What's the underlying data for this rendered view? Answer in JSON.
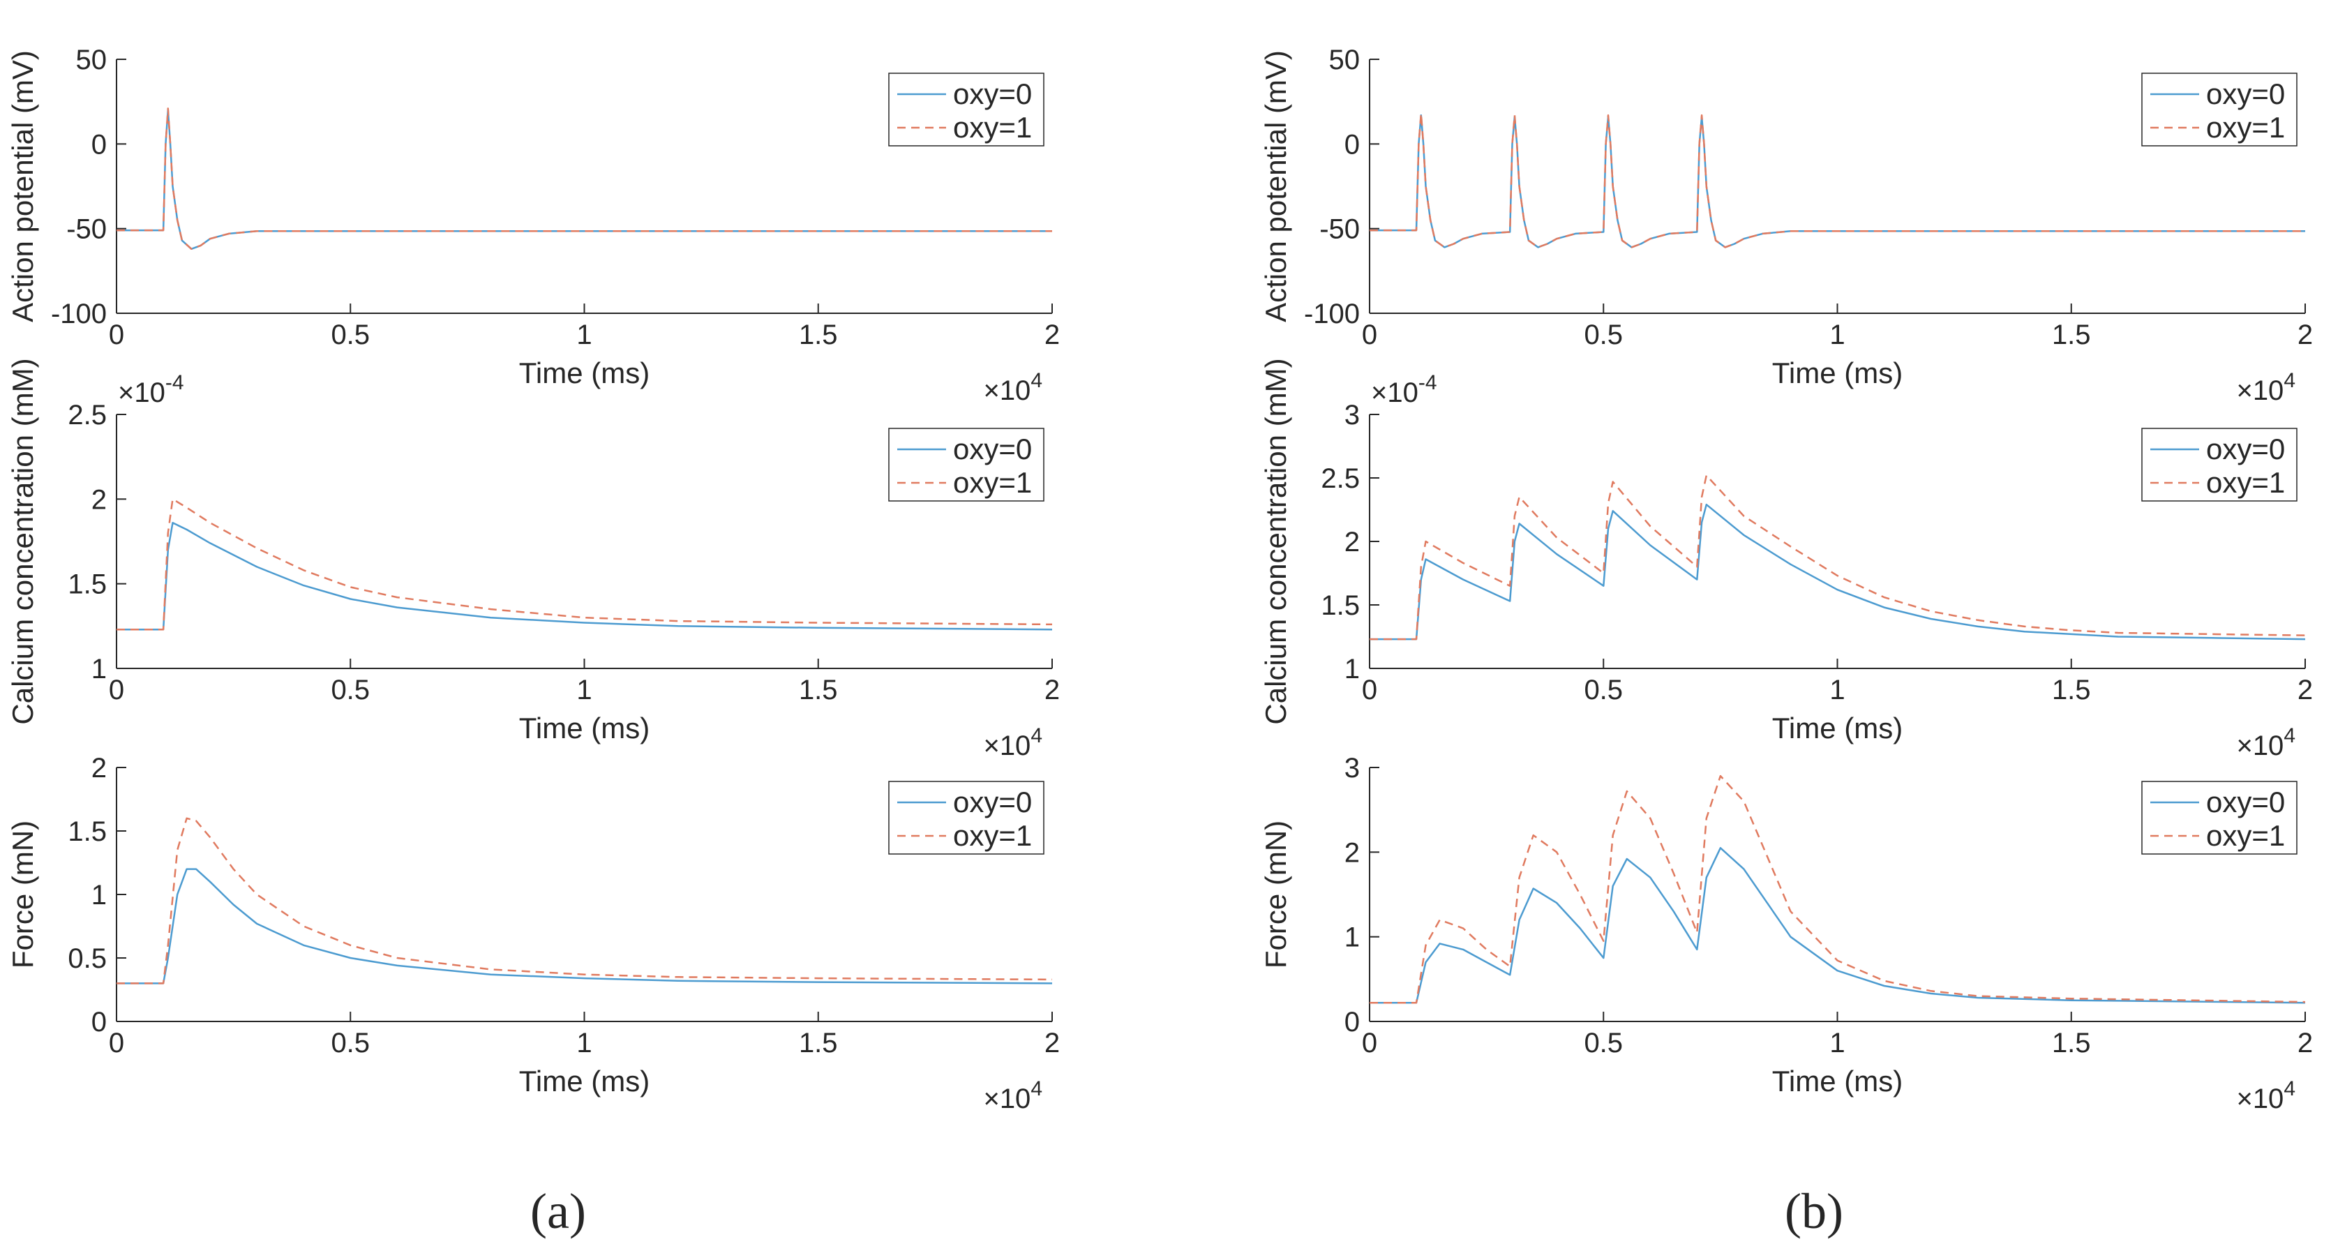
{
  "colors": {
    "oxy0": "#4c9bd0",
    "oxy1": "#e07a5f",
    "axis": "#262626"
  },
  "panel_labels": [
    "(a)",
    "(b)"
  ],
  "chart_data": [
    {
      "id": "a-ap",
      "type": "line",
      "panel": "a",
      "xlabel": "Time (ms)",
      "ylabel": "Action potential (mV)",
      "xlim": [
        0,
        20000
      ],
      "ylim": [
        -100,
        50
      ],
      "xticks": [
        0,
        5000,
        10000,
        15000,
        20000
      ],
      "xtick_labels": [
        "0",
        "0.5",
        "1",
        "1.5",
        "2"
      ],
      "yticks": [
        -100,
        -50,
        0,
        50
      ],
      "ytick_labels": [
        "-100",
        "-50",
        "0",
        "50"
      ],
      "x_multiplier": "×10",
      "x_multiplier_exp": "4",
      "y_multiplier": "",
      "y_multiplier_exp": "",
      "legend": [
        "oxy=0",
        "oxy=1"
      ],
      "legend_position": "top-right",
      "series": [
        {
          "name": "oxy=0",
          "x": [
            0,
            1000,
            1050,
            1100,
            1150,
            1200,
            1300,
            1400,
            1600,
            1800,
            2000,
            2400,
            3000,
            20000
          ],
          "y": [
            -51,
            -51,
            0,
            20,
            0,
            -25,
            -45,
            -57,
            -62,
            -60,
            -56,
            -53,
            -51.5,
            -51.5
          ]
        },
        {
          "name": "oxy=1",
          "x": [
            0,
            1000,
            1050,
            1100,
            1150,
            1200,
            1300,
            1400,
            1600,
            1800,
            2000,
            2400,
            3000,
            20000
          ],
          "y": [
            -51,
            -51,
            0,
            21,
            0,
            -25,
            -45,
            -57,
            -62,
            -60,
            -56,
            -53,
            -51.5,
            -51.5
          ]
        }
      ]
    },
    {
      "id": "a-ca",
      "type": "line",
      "panel": "a",
      "xlabel": "Time (ms)",
      "ylabel": "Calcium concentration (mM)",
      "xlim": [
        0,
        20000
      ],
      "ylim": [
        1,
        2.5
      ],
      "xticks": [
        0,
        5000,
        10000,
        15000,
        20000
      ],
      "xtick_labels": [
        "0",
        "0.5",
        "1",
        "1.5",
        "2"
      ],
      "yticks": [
        1,
        1.5,
        2,
        2.5
      ],
      "ytick_labels": [
        "1",
        "1.5",
        "2",
        "2.5"
      ],
      "x_multiplier": "×10",
      "x_multiplier_exp": "4",
      "y_multiplier": "×10",
      "y_multiplier_exp": "-4",
      "legend": [
        "oxy=0",
        "oxy=1"
      ],
      "legend_position": "top-right",
      "series": [
        {
          "name": "oxy=0",
          "x": [
            0,
            1000,
            1100,
            1200,
            1500,
            2000,
            3000,
            4000,
            5000,
            6000,
            8000,
            10000,
            12000,
            15000,
            20000
          ],
          "y": [
            1.23,
            1.23,
            1.7,
            1.86,
            1.82,
            1.74,
            1.6,
            1.49,
            1.41,
            1.36,
            1.3,
            1.27,
            1.25,
            1.24,
            1.23
          ]
        },
        {
          "name": "oxy=1",
          "x": [
            0,
            1000,
            1100,
            1200,
            1500,
            2000,
            3000,
            4000,
            5000,
            6000,
            8000,
            10000,
            12000,
            15000,
            20000
          ],
          "y": [
            1.23,
            1.23,
            1.8,
            2.0,
            1.95,
            1.86,
            1.71,
            1.58,
            1.48,
            1.42,
            1.35,
            1.3,
            1.28,
            1.27,
            1.26
          ]
        }
      ]
    },
    {
      "id": "a-force",
      "type": "line",
      "panel": "a",
      "xlabel": "Time (ms)",
      "ylabel": "Force (mN)",
      "xlim": [
        0,
        20000
      ],
      "ylim": [
        0,
        2
      ],
      "xticks": [
        0,
        5000,
        10000,
        15000,
        20000
      ],
      "xtick_labels": [
        "0",
        "0.5",
        "1",
        "1.5",
        "2"
      ],
      "yticks": [
        0,
        0.5,
        1,
        1.5,
        2
      ],
      "ytick_labels": [
        "0",
        "0.5",
        "1",
        "1.5",
        "2"
      ],
      "x_multiplier": "×10",
      "x_multiplier_exp": "4",
      "y_multiplier": "",
      "y_multiplier_exp": "",
      "legend": [
        "oxy=0",
        "oxy=1"
      ],
      "legend_position": "top-right",
      "series": [
        {
          "name": "oxy=0",
          "x": [
            0,
            1000,
            1100,
            1300,
            1500,
            1700,
            2000,
            2500,
            3000,
            4000,
            5000,
            6000,
            8000,
            10000,
            12000,
            15000,
            20000
          ],
          "y": [
            0.3,
            0.3,
            0.5,
            1.0,
            1.2,
            1.2,
            1.1,
            0.92,
            0.77,
            0.6,
            0.5,
            0.44,
            0.37,
            0.34,
            0.32,
            0.31,
            0.3
          ]
        },
        {
          "name": "oxy=1",
          "x": [
            0,
            1000,
            1100,
            1300,
            1500,
            1700,
            2000,
            2500,
            3000,
            4000,
            5000,
            6000,
            8000,
            10000,
            12000,
            15000,
            20000
          ],
          "y": [
            0.3,
            0.3,
            0.6,
            1.35,
            1.6,
            1.58,
            1.45,
            1.2,
            1.0,
            0.75,
            0.6,
            0.5,
            0.41,
            0.37,
            0.35,
            0.34,
            0.33
          ]
        }
      ]
    },
    {
      "id": "b-ap",
      "type": "line",
      "panel": "b",
      "xlabel": "Time (ms)",
      "ylabel": "Action potential (mV)",
      "xlim": [
        0,
        20000
      ],
      "ylim": [
        -100,
        50
      ],
      "xticks": [
        0,
        5000,
        10000,
        15000,
        20000
      ],
      "xtick_labels": [
        "0",
        "0.5",
        "1",
        "1.5",
        "2"
      ],
      "yticks": [
        -100,
        -50,
        0,
        50
      ],
      "ytick_labels": [
        "-100",
        "-50",
        "0",
        "50"
      ],
      "x_multiplier": "×10",
      "x_multiplier_exp": "4",
      "y_multiplier": "",
      "y_multiplier_exp": "",
      "legend": [
        "oxy=0",
        "oxy=1"
      ],
      "legend_position": "top-right",
      "series": [
        {
          "name": "oxy=0",
          "x": [
            0,
            1000,
            1050,
            1100,
            1150,
            1200,
            1300,
            1400,
            1600,
            1800,
            2000,
            2400,
            3000,
            3050,
            3100,
            3150,
            3200,
            3300,
            3400,
            3600,
            3800,
            4000,
            4400,
            5000,
            5050,
            5100,
            5150,
            5200,
            5300,
            5400,
            5600,
            5800,
            6000,
            6400,
            7000,
            7050,
            7100,
            7150,
            7200,
            7300,
            7400,
            7600,
            7800,
            8000,
            8400,
            9000,
            20000
          ],
          "y": [
            -51,
            -51,
            0,
            17,
            0,
            -25,
            -45,
            -57,
            -61,
            -59,
            -56,
            -53,
            -52,
            0,
            16,
            0,
            -25,
            -45,
            -57,
            -61,
            -59,
            -56,
            -53,
            -52,
            0,
            16,
            0,
            -25,
            -45,
            -57,
            -61,
            -59,
            -56,
            -53,
            -52,
            0,
            16,
            0,
            -25,
            -45,
            -57,
            -61,
            -59,
            -56,
            -53,
            -51.5,
            -51.5
          ]
        },
        {
          "name": "oxy=1",
          "x": [
            0,
            1000,
            1050,
            1100,
            1150,
            1200,
            1300,
            1400,
            1600,
            1800,
            2000,
            2400,
            3000,
            3050,
            3100,
            3150,
            3200,
            3300,
            3400,
            3600,
            3800,
            4000,
            4400,
            5000,
            5050,
            5100,
            5150,
            5200,
            5300,
            5400,
            5600,
            5800,
            6000,
            6400,
            7000,
            7050,
            7100,
            7150,
            7200,
            7300,
            7400,
            7600,
            7800,
            8000,
            8400,
            9000,
            20000
          ],
          "y": [
            -51,
            -51,
            0,
            18,
            0,
            -25,
            -45,
            -57,
            -61,
            -59,
            -56,
            -53,
            -52,
            0,
            17,
            0,
            -25,
            -45,
            -57,
            -61,
            -59,
            -56,
            -53,
            -52,
            0,
            17,
            0,
            -25,
            -45,
            -57,
            -61,
            -59,
            -56,
            -53,
            -52,
            0,
            17,
            0,
            -25,
            -45,
            -57,
            -61,
            -59,
            -56,
            -53,
            -51.5,
            -51.5
          ]
        }
      ]
    },
    {
      "id": "b-ca",
      "type": "line",
      "panel": "b",
      "xlabel": "Time (ms)",
      "ylabel": "Calcium concentration (mM)",
      "xlim": [
        0,
        20000
      ],
      "ylim": [
        1,
        3
      ],
      "xticks": [
        0,
        5000,
        10000,
        15000,
        20000
      ],
      "xtick_labels": [
        "0",
        "0.5",
        "1",
        "1.5",
        "2"
      ],
      "yticks": [
        1,
        1.5,
        2,
        2.5,
        3
      ],
      "ytick_labels": [
        "1",
        "1.5",
        "2",
        "2.5",
        "3"
      ],
      "x_multiplier": "×10",
      "x_multiplier_exp": "4",
      "y_multiplier": "×10",
      "y_multiplier_exp": "-4",
      "legend": [
        "oxy=0",
        "oxy=1"
      ],
      "legend_position": "top-right",
      "series": [
        {
          "name": "oxy=0",
          "x": [
            0,
            1000,
            1100,
            1200,
            2000,
            3000,
            3100,
            3200,
            4000,
            5000,
            5100,
            5200,
            6000,
            7000,
            7100,
            7200,
            8000,
            9000,
            10000,
            11000,
            12000,
            13000,
            14000,
            15000,
            16000,
            18000,
            20000
          ],
          "y": [
            1.23,
            1.23,
            1.7,
            1.86,
            1.7,
            1.53,
            2.0,
            2.14,
            1.9,
            1.65,
            2.1,
            2.24,
            1.97,
            1.7,
            2.15,
            2.29,
            2.05,
            1.82,
            1.62,
            1.48,
            1.39,
            1.33,
            1.29,
            1.27,
            1.25,
            1.24,
            1.23
          ]
        },
        {
          "name": "oxy=1",
          "x": [
            0,
            1000,
            1100,
            1200,
            2000,
            3000,
            3100,
            3200,
            4000,
            5000,
            5100,
            5200,
            6000,
            7000,
            7100,
            7200,
            8000,
            9000,
            10000,
            11000,
            12000,
            13000,
            14000,
            15000,
            16000,
            18000,
            20000
          ],
          "y": [
            1.23,
            1.23,
            1.8,
            2.0,
            1.83,
            1.65,
            2.2,
            2.35,
            2.03,
            1.75,
            2.3,
            2.47,
            2.12,
            1.8,
            2.35,
            2.52,
            2.2,
            1.96,
            1.73,
            1.56,
            1.45,
            1.38,
            1.33,
            1.3,
            1.28,
            1.27,
            1.26
          ]
        }
      ]
    },
    {
      "id": "b-force",
      "type": "line",
      "panel": "b",
      "xlabel": "Time (ms)",
      "ylabel": "Force (mN)",
      "xlim": [
        0,
        20000
      ],
      "ylim": [
        0,
        3
      ],
      "xticks": [
        0,
        5000,
        10000,
        15000,
        20000
      ],
      "xtick_labels": [
        "0",
        "0.5",
        "1",
        "1.5",
        "2"
      ],
      "yticks": [
        0,
        1,
        2,
        3
      ],
      "ytick_labels": [
        "0",
        "1",
        "2",
        "3"
      ],
      "x_multiplier": "×10",
      "x_multiplier_exp": "4",
      "y_multiplier": "",
      "y_multiplier_exp": "",
      "legend": [
        "oxy=0",
        "oxy=1"
      ],
      "legend_position": "top-right",
      "series": [
        {
          "name": "oxy=0",
          "x": [
            0,
            1000,
            1200,
            1500,
            2000,
            2500,
            3000,
            3200,
            3500,
            4000,
            4500,
            5000,
            5200,
            5500,
            6000,
            6500,
            7000,
            7200,
            7500,
            8000,
            8500,
            9000,
            10000,
            11000,
            12000,
            13000,
            15000,
            20000
          ],
          "y": [
            0.22,
            0.22,
            0.7,
            0.92,
            0.85,
            0.7,
            0.55,
            1.2,
            1.57,
            1.4,
            1.1,
            0.75,
            1.6,
            1.92,
            1.7,
            1.3,
            0.85,
            1.7,
            2.05,
            1.8,
            1.4,
            1.0,
            0.6,
            0.42,
            0.33,
            0.28,
            0.25,
            0.22
          ]
        },
        {
          "name": "oxy=1",
          "x": [
            0,
            1000,
            1200,
            1500,
            2000,
            2500,
            3000,
            3200,
            3500,
            4000,
            4500,
            5000,
            5200,
            5500,
            6000,
            6500,
            7000,
            7200,
            7500,
            8000,
            8500,
            9000,
            10000,
            11000,
            12000,
            13000,
            15000,
            20000
          ],
          "y": [
            0.22,
            0.22,
            0.9,
            1.2,
            1.1,
            0.85,
            0.65,
            1.7,
            2.2,
            2.0,
            1.5,
            0.95,
            2.2,
            2.72,
            2.4,
            1.75,
            1.05,
            2.4,
            2.9,
            2.6,
            1.95,
            1.3,
            0.72,
            0.48,
            0.36,
            0.3,
            0.27,
            0.23
          ]
        }
      ]
    }
  ]
}
